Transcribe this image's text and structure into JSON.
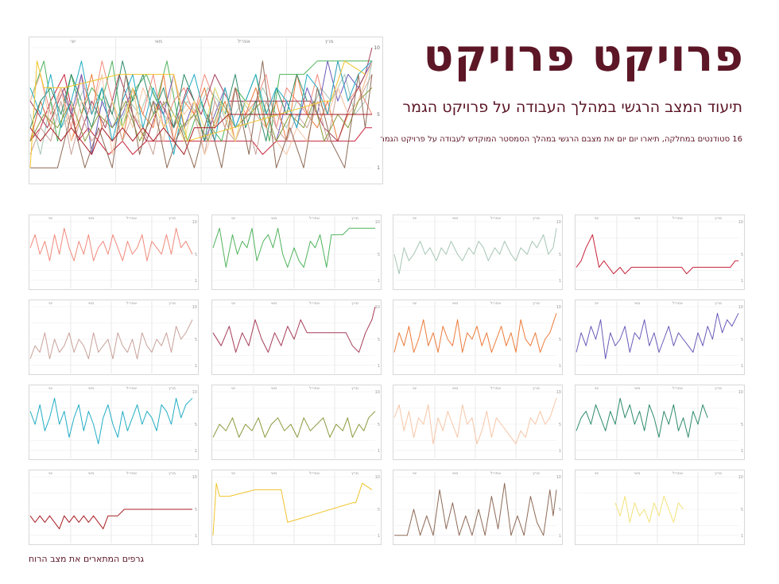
{
  "header": {
    "title": "פרויקט פרויקט",
    "subtitle": "תיעוד המצב הרגשי  במהלך העבודה על פרויקט הגמר",
    "description": "16 סטודנטים במחלקה, תיארו יום יום את מצבם הרגשי במהלך הסמסטר המוקדש לעבודה על פרויקט הגמר"
  },
  "footnote": "גרפים המתארים את מצב הרוח",
  "chart_data": {
    "type": "line",
    "months": [
      "מרץ",
      "אפריל",
      "מאי",
      "יוני"
    ],
    "y_ticks": [
      10,
      5,
      1
    ],
    "ylim": [
      0,
      10
    ],
    "xlim": [
      0,
      100
    ],
    "grid": true,
    "series": [
      {
        "color": "#c8243c",
        "x": [
          0,
          3,
          6,
          10,
          14,
          17,
          20,
          23,
          27,
          30,
          34,
          38,
          42,
          45,
          48,
          52,
          55,
          58,
          62,
          65,
          68,
          72,
          76,
          80,
          84,
          88,
          92,
          95,
          98,
          100
        ],
        "y": [
          3,
          4,
          6,
          8,
          3,
          4,
          3,
          2,
          3,
          2,
          3,
          3,
          3,
          3,
          3,
          3,
          3,
          3,
          3,
          3,
          2,
          3,
          3,
          3,
          3,
          3,
          3,
          3,
          4,
          4
        ]
      },
      {
        "color": "#a5c6b4",
        "x": [
          0,
          3,
          6,
          9,
          12,
          16,
          19,
          22,
          26,
          29,
          32,
          35,
          39,
          42,
          46,
          49,
          52,
          55,
          58,
          62,
          65,
          68,
          72,
          75,
          78,
          82,
          85,
          88,
          92,
          95,
          98,
          100
        ],
        "y": [
          5,
          2,
          6,
          4,
          5,
          7,
          5,
          6,
          4,
          6,
          5,
          7,
          5,
          4,
          6,
          5,
          7,
          6,
          4,
          6,
          5,
          7,
          5,
          4,
          6,
          5,
          7,
          6,
          8,
          5,
          6,
          9
        ]
      },
      {
        "color": "#4fb35c",
        "x": [
          0,
          4,
          8,
          12,
          15,
          18,
          21,
          24,
          27,
          31,
          34,
          37,
          40,
          43,
          46,
          50,
          53,
          56,
          60,
          63,
          66,
          70,
          73,
          76,
          80,
          84,
          88,
          92,
          96,
          100
        ],
        "y": [
          6,
          9,
          3,
          8,
          5,
          7,
          6,
          9,
          4,
          7,
          8,
          6,
          9,
          5,
          3,
          6,
          4,
          3,
          7,
          6,
          8,
          3,
          8,
          8,
          8,
          9,
          9,
          9,
          9,
          9
        ]
      },
      {
        "color": "#f08a7c",
        "x": [
          0,
          3,
          6,
          9,
          12,
          15,
          18,
          21,
          24,
          27,
          30,
          33,
          36,
          39,
          42,
          45,
          48,
          51,
          54,
          57,
          60,
          63,
          66,
          69,
          72,
          75,
          78,
          81,
          84,
          87,
          90,
          93,
          96,
          100
        ],
        "y": [
          6,
          8,
          5,
          7,
          4,
          8,
          5,
          9,
          6,
          4,
          7,
          5,
          8,
          4,
          6,
          7,
          5,
          8,
          6,
          4,
          7,
          5,
          6,
          8,
          4,
          7,
          6,
          5,
          8,
          5,
          9,
          6,
          7,
          5
        ]
      },
      {
        "color": "#6b5bb8",
        "x": [
          0,
          3,
          6,
          9,
          12,
          15,
          18,
          21,
          24,
          27,
          30,
          33,
          36,
          39,
          42,
          45,
          48,
          51,
          54,
          57,
          60,
          63,
          66,
          69,
          72,
          75,
          78,
          81,
          84,
          87,
          90,
          93,
          96,
          100
        ],
        "y": [
          3,
          6,
          4,
          7,
          5,
          8,
          2,
          6,
          4,
          5,
          7,
          3,
          6,
          5,
          8,
          4,
          6,
          3,
          5,
          7,
          4,
          6,
          5,
          4,
          3,
          6,
          4,
          7,
          5,
          9,
          6,
          8,
          7,
          9
        ]
      },
      {
        "color": "#ec7b3a",
        "x": [
          0,
          3,
          6,
          9,
          12,
          15,
          18,
          21,
          24,
          27,
          30,
          33,
          36,
          39,
          42,
          45,
          48,
          51,
          54,
          57,
          60,
          63,
          66,
          69,
          72,
          75,
          78,
          81,
          84,
          87,
          90,
          93,
          96,
          100
        ],
        "y": [
          3,
          6,
          4,
          7,
          3,
          5,
          8,
          4,
          6,
          3,
          7,
          5,
          4,
          8,
          3,
          6,
          5,
          7,
          4,
          6,
          3,
          5,
          7,
          4,
          6,
          3,
          8,
          5,
          4,
          6,
          3,
          5,
          6,
          9
        ]
      },
      {
        "color": "#a53d58",
        "x": [
          0,
          5,
          10,
          14,
          18,
          22,
          26,
          30,
          34,
          38,
          42,
          46,
          50,
          54,
          58,
          62,
          66,
          70,
          74,
          78,
          82,
          86,
          90,
          94,
          98,
          100
        ],
        "y": [
          6,
          4,
          7,
          3,
          6,
          4,
          8,
          5,
          3,
          6,
          4,
          7,
          5,
          8,
          6,
          6,
          6,
          6,
          6,
          6,
          6,
          4,
          3,
          6,
          8,
          10
        ]
      },
      {
        "color": "#c9a29a",
        "x": [
          0,
          3,
          6,
          9,
          12,
          15,
          18,
          21,
          24,
          27,
          30,
          33,
          36,
          39,
          42,
          45,
          48,
          51,
          54,
          57,
          60,
          63,
          66,
          69,
          72,
          75,
          78,
          81,
          84,
          87,
          90,
          93,
          96,
          100
        ],
        "y": [
          2,
          4,
          3,
          6,
          2,
          5,
          3,
          4,
          6,
          3,
          5,
          4,
          2,
          6,
          3,
          4,
          5,
          2,
          6,
          4,
          3,
          5,
          2,
          6,
          4,
          3,
          5,
          4,
          6,
          3,
          7,
          5,
          6,
          8
        ]
      },
      {
        "color": "#2e8c6a",
        "x": [
          0,
          3,
          6,
          9,
          12,
          15,
          18,
          21,
          24,
          27,
          30,
          33,
          36,
          39,
          42,
          45,
          48,
          51,
          54,
          57,
          60,
          63,
          66,
          69,
          72,
          75,
          78,
          81
        ],
        "y": [
          4,
          6,
          7,
          5,
          8,
          6,
          4,
          7,
          5,
          9,
          6,
          8,
          5,
          7,
          4,
          8,
          6,
          3,
          7,
          5,
          8,
          4,
          6,
          3,
          7,
          5,
          8,
          6
        ]
      },
      {
        "color": "#f6c6a6",
        "x": [
          0,
          3,
          6,
          9,
          12,
          15,
          18,
          21,
          24,
          27,
          30,
          33,
          36,
          39,
          42,
          45,
          48,
          51,
          54,
          57,
          60,
          63,
          66,
          69,
          72,
          75,
          78,
          81,
          84,
          87,
          90,
          93,
          96,
          100
        ],
        "y": [
          6,
          8,
          4,
          7,
          3,
          6,
          5,
          8,
          2,
          6,
          4,
          7,
          5,
          3,
          8,
          5,
          6,
          2,
          4,
          7,
          3,
          6,
          5,
          4,
          3,
          2,
          4,
          3,
          6,
          5,
          7,
          5,
          6,
          9
        ]
      },
      {
        "color": "#8a9a3e",
        "x": [
          0,
          4,
          8,
          12,
          16,
          20,
          24,
          28,
          32,
          36,
          40,
          44,
          48,
          52,
          56,
          60,
          64,
          68,
          72,
          76,
          80,
          83,
          86,
          90,
          93,
          96,
          100
        ],
        "y": [
          3,
          5,
          4,
          6,
          3,
          5,
          4,
          6,
          3,
          5,
          6,
          4,
          5,
          3,
          6,
          4,
          5,
          6,
          3,
          5,
          4,
          6,
          3,
          5,
          4,
          6,
          7
        ]
      },
      {
        "color": "#22adc4",
        "x": [
          0,
          3,
          6,
          9,
          12,
          15,
          18,
          21,
          24,
          27,
          30,
          33,
          36,
          39,
          42,
          45,
          48,
          51,
          54,
          57,
          60,
          63,
          66,
          69,
          72,
          75,
          78,
          81,
          84,
          87,
          90,
          93,
          96,
          100
        ],
        "y": [
          7,
          5,
          8,
          4,
          6,
          9,
          5,
          7,
          3,
          6,
          8,
          4,
          7,
          5,
          2,
          6,
          8,
          5,
          3,
          7,
          4,
          6,
          8,
          5,
          7,
          6,
          4,
          8,
          7,
          5,
          9,
          6,
          8,
          9
        ]
      },
      {
        "color": "#f3e27a",
        "x": [
          24,
          27,
          30,
          33,
          36,
          39,
          42,
          45,
          48,
          51,
          54,
          57,
          60,
          63,
          66
        ],
        "y": [
          6,
          4,
          7,
          3,
          6,
          4,
          5,
          3,
          6,
          4,
          7,
          5,
          3,
          6,
          5
        ]
      },
      {
        "color": "#8e6a57",
        "x": [
          0,
          4,
          8,
          12,
          16,
          20,
          24,
          28,
          32,
          36,
          40,
          44,
          48,
          52,
          56,
          60,
          64,
          68,
          72,
          76,
          80,
          84,
          88,
          92,
          96,
          98,
          100
        ],
        "y": [
          1,
          1,
          1,
          5,
          1,
          4,
          1,
          8,
          2,
          6,
          1,
          4,
          1,
          5,
          1,
          7,
          2,
          9,
          1,
          4,
          1,
          7,
          3,
          1,
          8,
          4,
          8
        ]
      },
      {
        "color": "#f0c42c",
        "x": [
          0,
          2,
          4,
          10,
          26,
          30,
          42,
          46,
          86,
          88,
          92,
          98
        ],
        "y": [
          1,
          9,
          7,
          7,
          8,
          8,
          8,
          3,
          6,
          6,
          9,
          8
        ]
      },
      {
        "color": "#a81e24",
        "x": [
          0,
          3,
          6,
          9,
          12,
          15,
          18,
          21,
          24,
          27,
          30,
          33,
          36,
          39,
          42,
          45,
          48,
          51,
          54,
          58,
          62,
          66,
          70,
          74,
          78,
          84,
          90,
          96,
          100
        ],
        "y": [
          4,
          3,
          4,
          3,
          4,
          3,
          2,
          4,
          3,
          4,
          3,
          4,
          3,
          4,
          3,
          2,
          4,
          4,
          4,
          5,
          5,
          5,
          5,
          5,
          5,
          5,
          5,
          5,
          5
        ]
      }
    ]
  }
}
